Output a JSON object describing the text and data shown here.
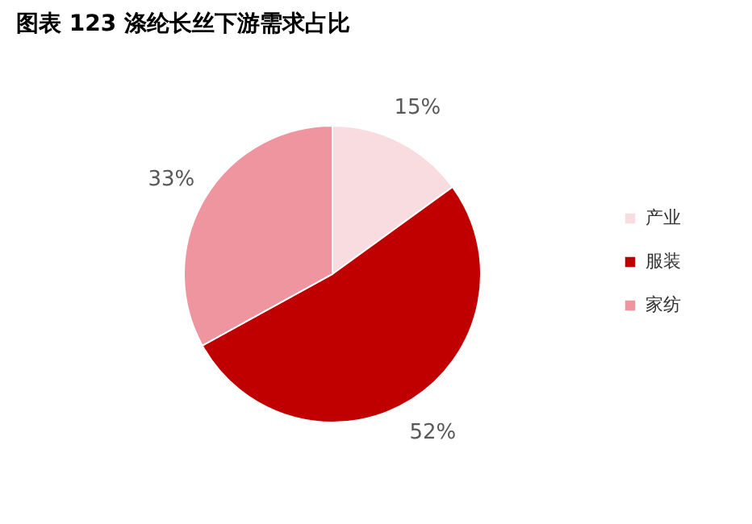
{
  "chart_data": {
    "type": "pie",
    "title": "图表 123 涤纶长丝下游需求占比",
    "categories": [
      "产业",
      "服装",
      "家纺"
    ],
    "values": [
      15,
      52,
      33
    ],
    "colors": [
      "#f9dce0",
      "#c00000",
      "#ee959f"
    ],
    "value_labels": [
      "15%",
      "52%",
      "33%"
    ],
    "legend": "right"
  }
}
